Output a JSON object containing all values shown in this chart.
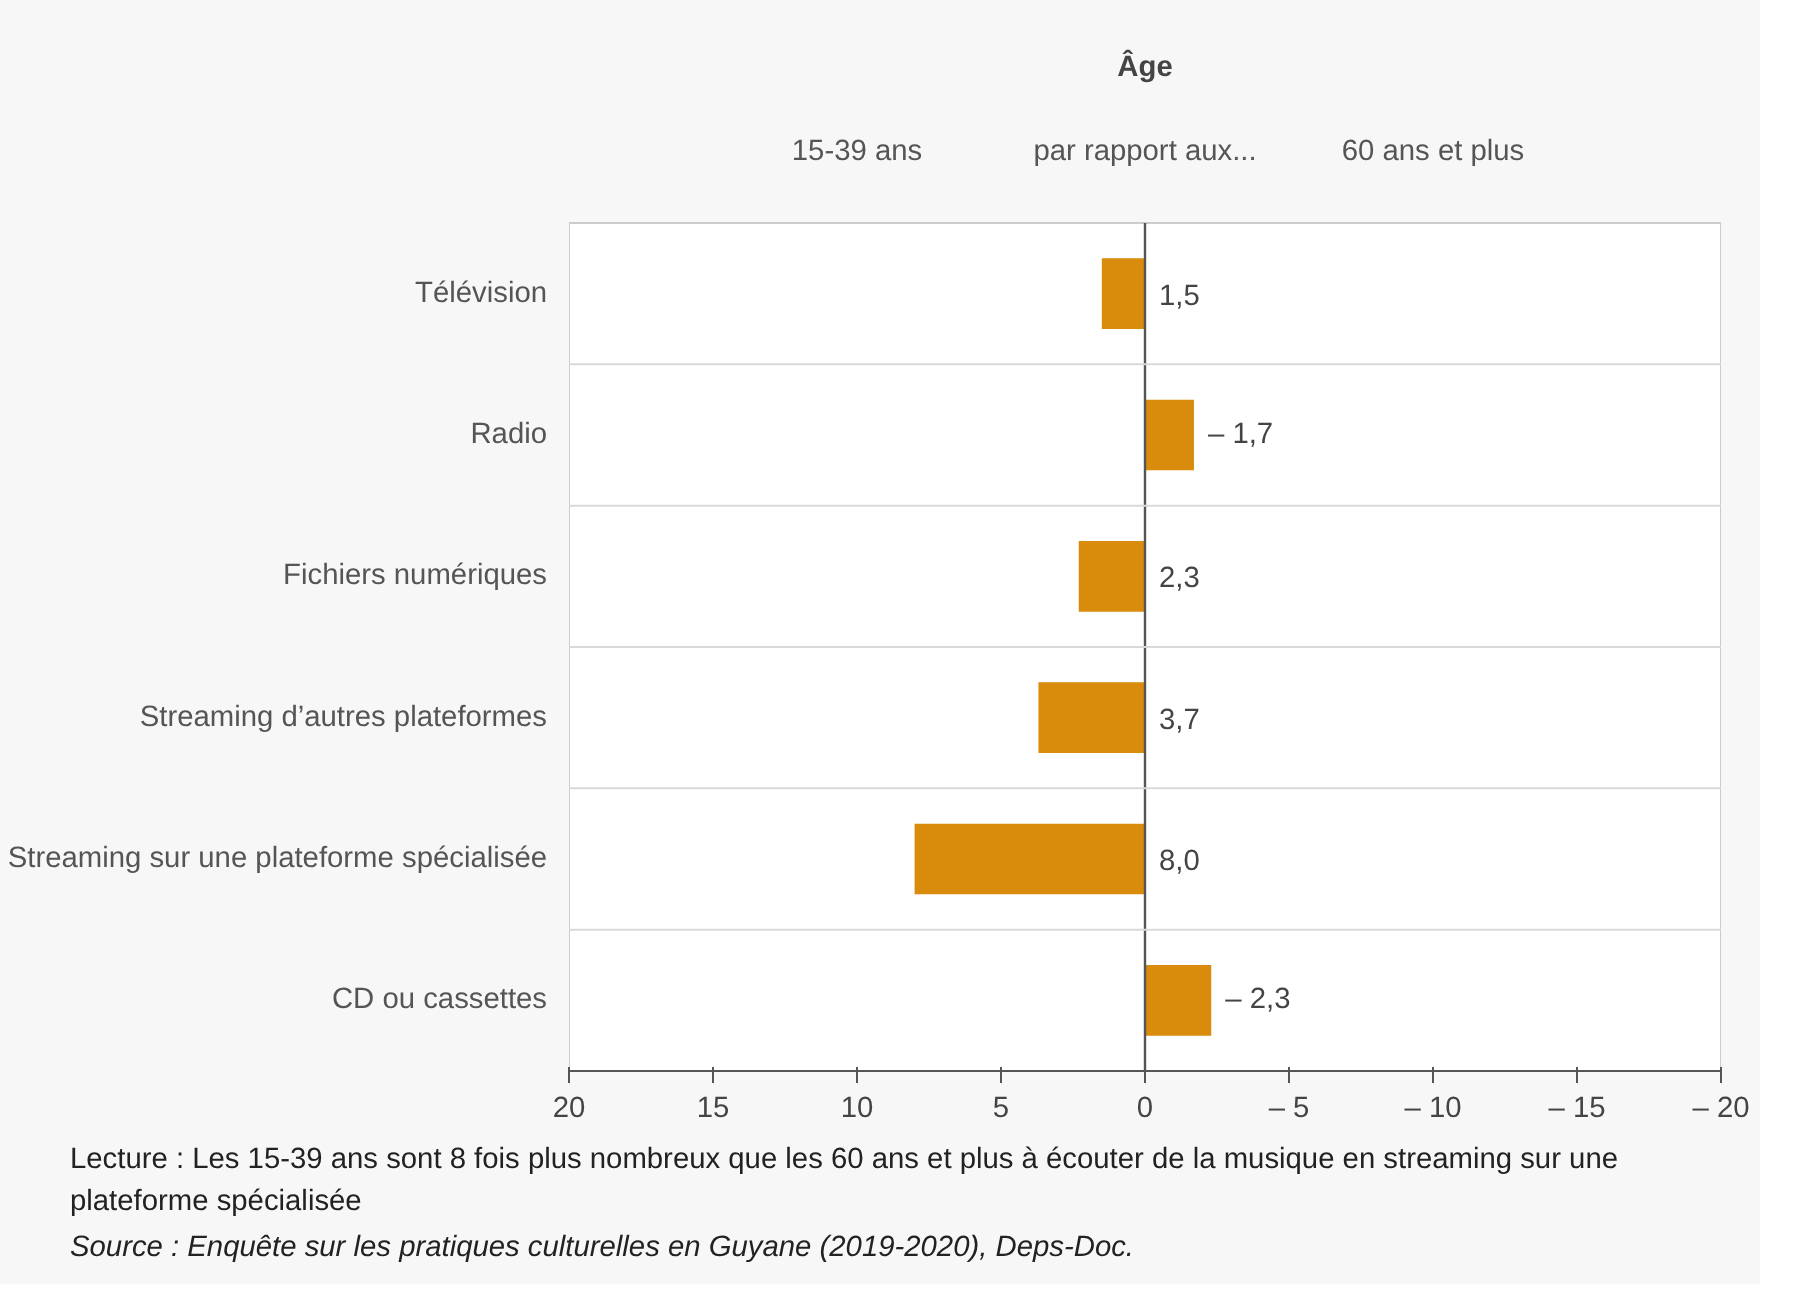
{
  "chart_data": {
    "type": "bar",
    "orientation": "horizontal",
    "title": "Âge",
    "categories": [
      "Télévision",
      "Radio",
      "Fichiers numériques",
      "Streaming d’autres plateformes",
      "Streaming sur une plateforme spécialisée",
      "CD ou cassettes"
    ],
    "values": [
      1.5,
      -1.7,
      2.3,
      3.7,
      8.0,
      -2.3
    ],
    "value_labels": [
      "1,5",
      "– 1,7",
      "2,3",
      "3,7",
      "8,0",
      "– 2,3"
    ],
    "color": "#d98b0b",
    "xlim": [
      20,
      -20
    ],
    "xticks": [
      20,
      15,
      10,
      5,
      0,
      {
        "value": -5,
        "label": "– 5"
      },
      {
        "value": -10,
        "label": "– 10"
      },
      {
        "value": -15,
        "label": "– 15"
      },
      {
        "value": -20,
        "label": "– 20"
      }
    ],
    "grid": "y",
    "annotations": [
      "15-39 ans",
      "par rapport aux...",
      "60 ans et plus",
      "Lecture : Les 15-39 ans sont 8 fois plus nombreux que les 60 ans et plus à écouter de la musique en streaming sur une plateforme spécialisée",
      "Source : Enquête sur les pratiques culturelles en Guyane (2019-2020), Deps-Doc."
    ]
  }
}
